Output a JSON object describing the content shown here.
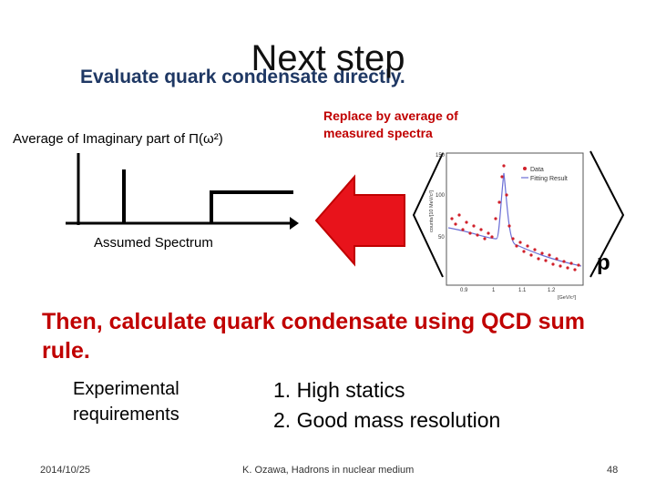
{
  "slide": {
    "title": "Next step",
    "subtitle": "Evaluate quark condensate directly.",
    "avg_label": "Average of Imaginary part of Π(ω²)",
    "replace_label_line1": "Replace by average of",
    "replace_label_line2": "measured spectra",
    "assumed_label": "Assumed Spectrum",
    "bracket_subscript": "p",
    "then_text": "Then, calculate quark condensate using QCD sum rule.",
    "exp_label_line1": "Experimental",
    "exp_label_line2": "requirements",
    "requirements": [
      "1.  High statics",
      "2.  Good mass resolution"
    ]
  },
  "inset_plot": {
    "legend": [
      "Data",
      "Fitting Result"
    ],
    "ylabel": "counts/[10 MeV/c²]",
    "xlabel": "[GeV/c²]",
    "y_ticks": [
      "150",
      "100",
      "50"
    ],
    "x_ticks": [
      "0.9",
      "1",
      "1.1",
      "1.2"
    ]
  },
  "footer": {
    "date": "2014/10/25",
    "center": "K. Ozawa, Hadrons in nuclear medium",
    "page": "48"
  },
  "colors": {
    "arrow": "#e8131b",
    "accent_red": "#c00000",
    "subtitle_blue": "#1f3864"
  }
}
